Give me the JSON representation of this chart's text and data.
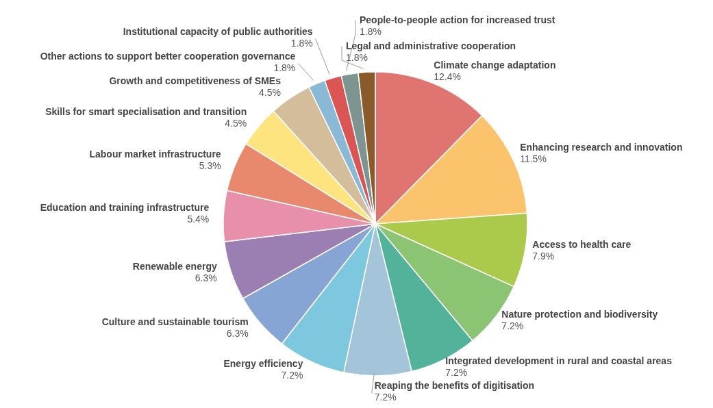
{
  "chart_data": {
    "type": "pie",
    "categories": [
      "Climate change adaptation",
      "Enhancing research and innovation",
      "Access to health care",
      "Nature protection and biodiversity",
      "Integrated development in rural and coastal areas",
      "Reaping the benefits of digitisation",
      "Energy efficiency",
      "Culture and sustainable tourism",
      "Renewable energy",
      "Education and training infrastructure",
      "Labour market infrastructure",
      "Skills for smart specialisation and transition",
      "Growth and competitiveness of SMEs",
      "Other actions to support better cooperation governance",
      "Institutional capacity of public authorities",
      "People-to-people action for increased trust",
      "Legal and administrative cooperation"
    ],
    "values": [
      12.4,
      11.5,
      7.9,
      7.2,
      7.2,
      7.2,
      7.2,
      6.3,
      6.3,
      5.4,
      5.3,
      4.5,
      4.5,
      1.8,
      1.8,
      1.8,
      1.8
    ],
    "value_labels": [
      "12.4%",
      "11.5%",
      "7.9%",
      "7.2%",
      "7.2%",
      "7.2%",
      "7.2%",
      "6.3%",
      "6.3%",
      "5.4%",
      "5.3%",
      "4.5%",
      "4.5%",
      "1.8%",
      "1.8%",
      "1.8%",
      "1.8%"
    ],
    "colors": [
      "#e07470",
      "#fbc46c",
      "#abc94a",
      "#8bc473",
      "#52b29a",
      "#a3c4d9",
      "#7ec8df",
      "#86a4d4",
      "#9b7fb2",
      "#e890ab",
      "#e8896e",
      "#fde47f",
      "#d4bd9a",
      "#8ab9d6",
      "#dc5555",
      "#7d9491",
      "#8b5a2b"
    ],
    "legend": false
  }
}
